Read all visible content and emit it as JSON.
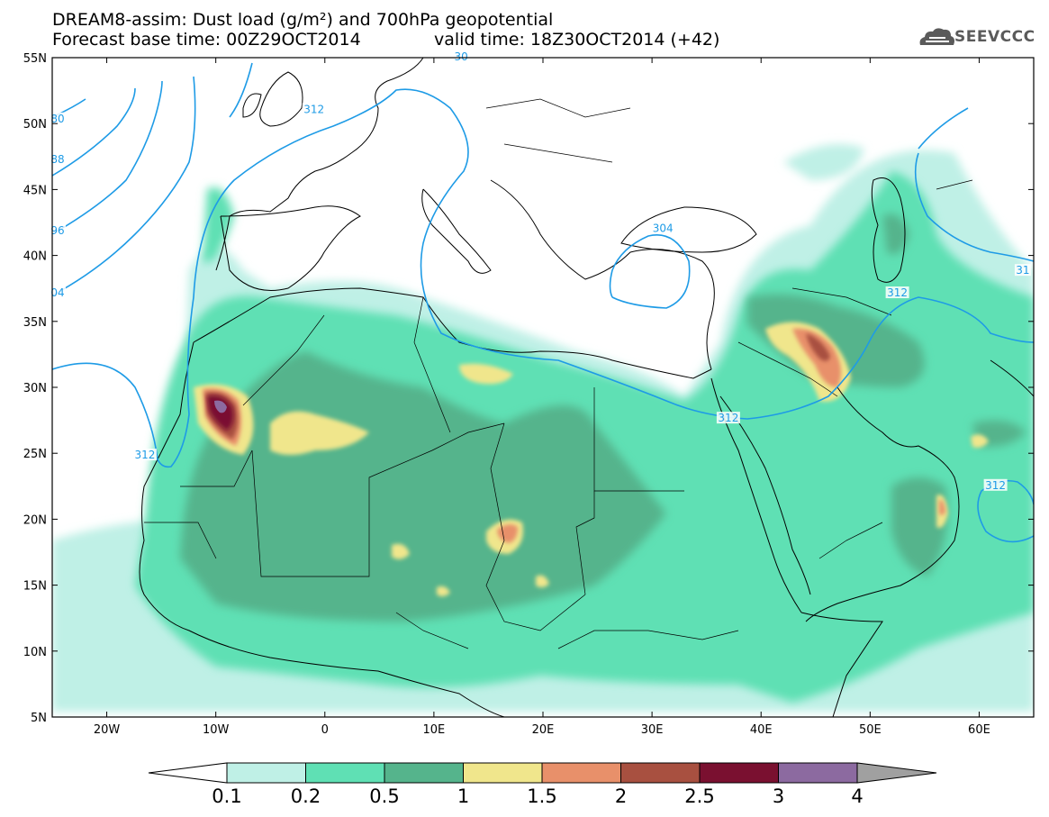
{
  "title": {
    "line1": "DREAM8-assim: Dust load (g/m²) and 700hPa geopotential",
    "line2": "Forecast base time: 00Z29OCT2014",
    "valid": "valid time: 18Z30OCT2014 (+42)"
  },
  "logo": {
    "text": "SEEVCCC",
    "icon": "cloud-icon"
  },
  "map": {
    "lon_range": [
      -25,
      65
    ],
    "lat_range": [
      5,
      55
    ],
    "lon_ticks": [
      "20W",
      "10W",
      "0",
      "10E",
      "20E",
      "30E",
      "40E",
      "50E",
      "60E"
    ],
    "lat_ticks": [
      "55N",
      "50N",
      "45N",
      "40N",
      "35N",
      "30N",
      "25N",
      "20N",
      "15N",
      "10N",
      "5N"
    ],
    "contour_labels": [
      {
        "text": "312",
        "lon": -1,
        "lat": 51
      },
      {
        "text": "80",
        "lon": -24.5,
        "lat": 50.3
      },
      {
        "text": "88",
        "lon": -24.5,
        "lat": 47.2
      },
      {
        "text": "96",
        "lon": -24.5,
        "lat": 41.8
      },
      {
        "text": "04",
        "lon": -24.5,
        "lat": 37.1
      },
      {
        "text": "304",
        "lon": 31,
        "lat": 42
      },
      {
        "text": "312",
        "lon": 52.5,
        "lat": 37.1
      },
      {
        "text": "31",
        "lon": 64,
        "lat": 38.8
      },
      {
        "text": "312",
        "lon": 37,
        "lat": 27.6
      },
      {
        "text": "312",
        "lon": -16.5,
        "lat": 24.8
      },
      {
        "text": "312",
        "lon": 61.5,
        "lat": 22.5
      },
      {
        "text": "30",
        "lon": 12.5,
        "lat": 55
      }
    ]
  },
  "colorbar": {
    "levels": [
      "0.1",
      "0.2",
      "0.5",
      "1",
      "1.5",
      "2",
      "2.5",
      "3",
      "4"
    ],
    "colors": [
      "#bff0e6",
      "#5fe0b4",
      "#55b48c",
      "#f0e68c",
      "#e8906a",
      "#a85040",
      "#7a1030",
      "#8c6aa0"
    ],
    "over_color": "#a0a0a0",
    "under_color": "#ffffff"
  },
  "colors": {
    "contour": "#1e9be6",
    "border": "#000000"
  }
}
